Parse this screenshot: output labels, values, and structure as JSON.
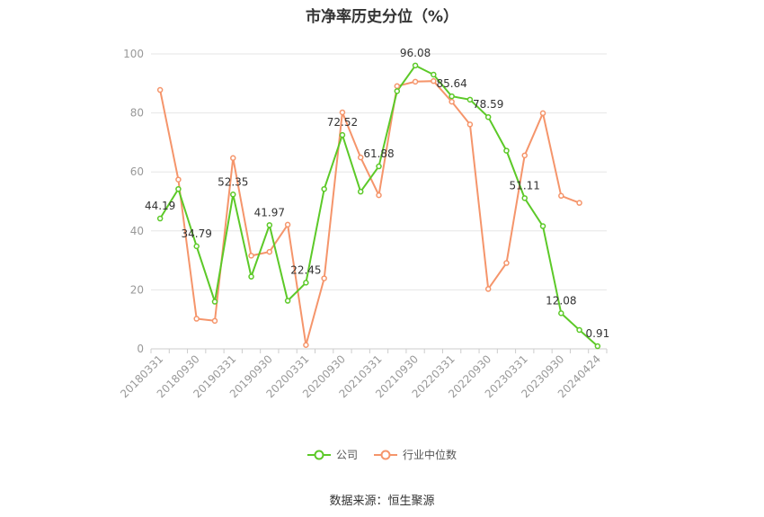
{
  "chart_data": {
    "type": "line",
    "title": "市净率历史分位（%）",
    "source": "数据来源：恒生聚源",
    "ylim": [
      0,
      100
    ],
    "yticks": [
      0,
      20,
      40,
      60,
      80,
      100
    ],
    "grid": true,
    "legend_position": "bottom",
    "x": [
      "20180331",
      "20180630",
      "20180930",
      "20181231",
      "20190331",
      "20190630",
      "20190930",
      "20191231",
      "20200331",
      "20200630",
      "20200930",
      "20201231",
      "20210331",
      "20210630",
      "20210930",
      "20211231",
      "20220331",
      "20220630",
      "20220930",
      "20221231",
      "20230331",
      "20230630",
      "20230930",
      "20231231",
      "20240424"
    ],
    "x_tick_labels": [
      "20180331",
      "20180930",
      "20190331",
      "20190930",
      "20200331",
      "20200930",
      "20210331",
      "20210930",
      "20220331",
      "20220930",
      "20230331",
      "20230930",
      "20240424"
    ],
    "series": [
      {
        "name": "公司",
        "color": "#5cc928",
        "values": [
          44.19,
          54.2,
          34.79,
          16.0,
          52.35,
          24.5,
          41.97,
          16.3,
          22.45,
          54.2,
          72.52,
          53.3,
          61.88,
          87.4,
          96.08,
          93.0,
          85.64,
          84.5,
          78.59,
          67.2,
          51.11,
          41.6,
          12.08,
          6.4,
          0.91
        ],
        "labels": {
          "0": "44.19",
          "2": "34.79",
          "4": "52.35",
          "6": "41.97",
          "8": "22.45",
          "10": "72.52",
          "12": "61.88",
          "14": "96.08",
          "16": "85.64",
          "18": "78.59",
          "20": "51.11",
          "22": "12.08",
          "24": "0.91"
        }
      },
      {
        "name": "行业中位数",
        "color": "#f5956b",
        "values": [
          87.8,
          57.4,
          10.2,
          9.5,
          64.7,
          31.6,
          32.9,
          42.1,
          1.3,
          23.9,
          80.2,
          64.9,
          52.1,
          89.1,
          90.6,
          90.8,
          83.8,
          76.1,
          20.3,
          29.1,
          65.6,
          79.9,
          51.9,
          49.5,
          null
        ]
      }
    ]
  }
}
